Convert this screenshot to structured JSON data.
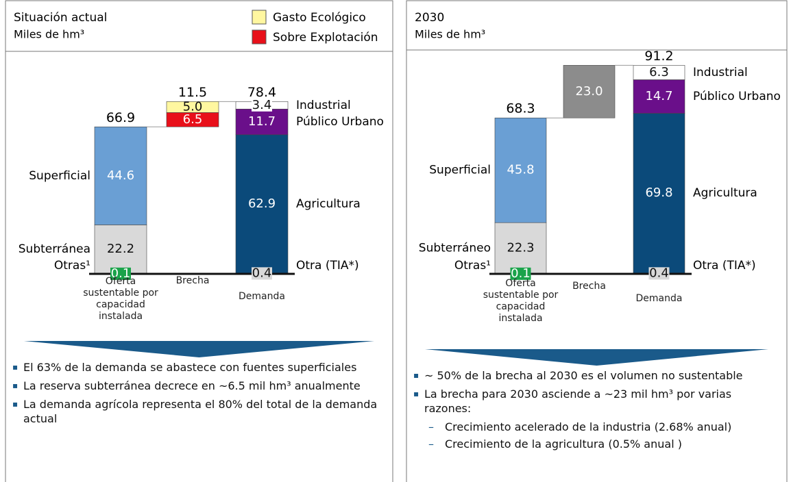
{
  "chart_data": [
    {
      "type": "waterfall",
      "title": "Situación actual",
      "subtitle": "Miles de hm³",
      "categories": [
        "Oferta sustentable por capacidad instalada",
        "Brecha",
        "Demanda"
      ],
      "series": [
        {
          "name": "Otras¹",
          "color": "#1aa34a",
          "values": [
            0.1,
            null,
            null
          ]
        },
        {
          "name": "Subterránea",
          "color": "#d9d9d9",
          "values": [
            22.2,
            null,
            null
          ]
        },
        {
          "name": "Superficial",
          "color": "#6a9fd4",
          "values": [
            44.6,
            null,
            null
          ]
        },
        {
          "name": "Sobre Explotación",
          "color": "#e8101a",
          "in_legend": true,
          "values": [
            null,
            6.5,
            null
          ]
        },
        {
          "name": "Gasto Ecológico",
          "color": "#fff7a0",
          "in_legend": true,
          "values": [
            null,
            5,
            null
          ],
          "value_labels": [
            null,
            "5.0",
            null
          ]
        },
        {
          "name": "Otra (TIA*)",
          "color": "#d9d9d9",
          "values": [
            null,
            null,
            0.4
          ]
        },
        {
          "name": "Agricultura",
          "color": "#0b4a7a",
          "values": [
            null,
            null,
            62.9
          ]
        },
        {
          "name": "Público Urbano",
          "color": "#6a0f8a",
          "values": [
            null,
            null,
            11.7
          ]
        },
        {
          "name": "Industrial",
          "color": "#ffffff",
          "values": [
            null,
            null,
            3.4
          ]
        }
      ],
      "totals": [
        66.9,
        11.5,
        78.4
      ],
      "notes": [
        "El 63% de la demanda se abastece con fuentes superficiales",
        "La reserva subterránea decrece en ~6.5 mil hm³ anualmente",
        "La demanda agrícola representa el 80% del total de la demanda actual"
      ]
    },
    {
      "type": "waterfall",
      "title": "2030",
      "subtitle": "Miles de hm³",
      "categories": [
        "Oferta sustentable por capacidad instalada",
        "Brecha",
        "Demanda"
      ],
      "series": [
        {
          "name": "Otras¹",
          "color": "#1aa34a",
          "values": [
            0.1,
            null,
            null
          ]
        },
        {
          "name": "Subterráneo",
          "color": "#d9d9d9",
          "values": [
            22.3,
            null,
            null
          ]
        },
        {
          "name": "Superficial",
          "color": "#6a9fd4",
          "values": [
            45.8,
            null,
            null
          ]
        },
        {
          "color": "#8c8c8c",
          "values": [
            null,
            23,
            null
          ],
          "value_labels": [
            null,
            "23.0",
            null
          ]
        },
        {
          "name": "Otra (TIA*)",
          "color": "#d9d9d9",
          "values": [
            null,
            null,
            0.4
          ]
        },
        {
          "name": "Agricultura",
          "color": "#0b4a7a",
          "values": [
            null,
            null,
            69.8
          ]
        },
        {
          "name": "Público Urbano",
          "color": "#6a0f8a",
          "values": [
            null,
            null,
            14.7
          ]
        },
        {
          "name": "Industrial",
          "color": "#ffffff",
          "values": [
            null,
            null,
            6.3
          ]
        }
      ],
      "totals": [
        68.3,
        null,
        91.2
      ],
      "notes": [
        "~ 50% de la brecha al 2030 es el volumen no sustentable",
        "La brecha para 2030 asciende a ~23 mil hm³ por varias razones:"
      ],
      "subnotes": [
        "Crecimiento acelerado de la industria (2.68% anual)",
        "Crecimiento de la agricultura (0.5% anual )"
      ]
    }
  ]
}
